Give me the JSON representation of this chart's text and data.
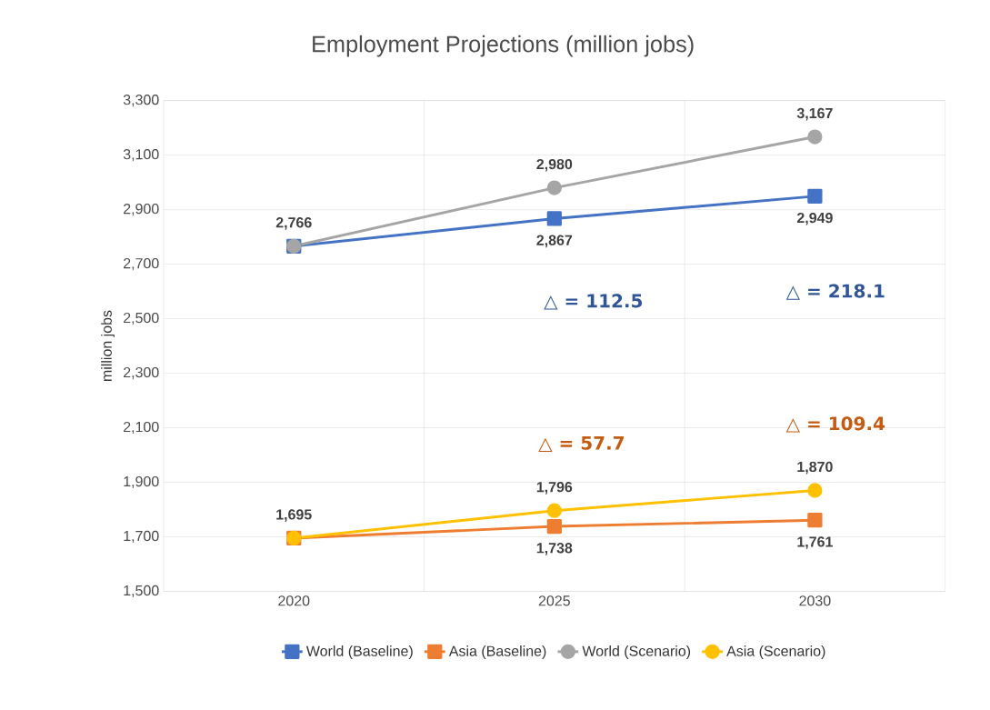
{
  "chart_data": {
    "type": "line",
    "title": "Employment Projections (million jobs)",
    "ylabel": "million jobs",
    "categories": [
      "2020",
      "2025",
      "2030"
    ],
    "series": [
      {
        "name": "World (Baseline)",
        "color": "#4472c4",
        "marker": "square",
        "values": [
          2766,
          2867,
          2949
        ],
        "value_labels": [
          null,
          "2,867",
          "2,949"
        ]
      },
      {
        "name": "Asia (Baseline)",
        "color": "#ed7d31",
        "marker": "square",
        "values": [
          1695,
          1738,
          1761
        ],
        "value_labels": [
          null,
          "1,738",
          "1,761"
        ]
      },
      {
        "name": "World (Scenario)",
        "color": "#a5a5a5",
        "marker": "circle",
        "values": [
          2766,
          2980,
          3167
        ],
        "value_labels": [
          "2,766",
          "2,980",
          "3,167"
        ]
      },
      {
        "name": "Asia (Scenario)",
        "color": "#ffc000",
        "marker": "circle",
        "values": [
          1695,
          1796,
          1870
        ],
        "value_labels": [
          "1,695",
          "1,796",
          "1,870"
        ]
      }
    ],
    "annotations": [
      "△ = 112.5",
      "△ = 218.1",
      "△ = 57.7",
      "△ = 109.4"
    ],
    "ylim": [
      1500,
      3300
    ],
    "yticks": [
      {
        "value": 1500,
        "label": "1,500"
      },
      {
        "value": 1700,
        "label": "1,700"
      },
      {
        "value": 1900,
        "label": "1,900"
      },
      {
        "value": 2100,
        "label": "2,100"
      },
      {
        "value": 2300,
        "label": "2,300"
      },
      {
        "value": 2500,
        "label": "2,500"
      },
      {
        "value": 2700,
        "label": "2,700"
      },
      {
        "value": 2900,
        "label": "2,900"
      },
      {
        "value": 3100,
        "label": "3,100"
      },
      {
        "value": 3300,
        "label": "3,300"
      }
    ],
    "grid": true,
    "legend": "bottom",
    "line_style": "solid"
  }
}
